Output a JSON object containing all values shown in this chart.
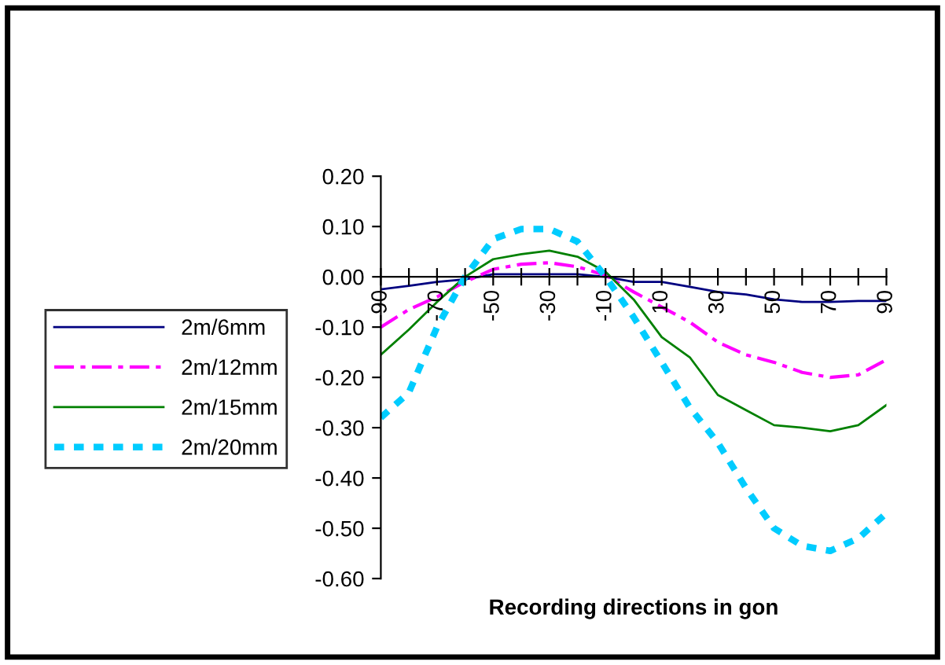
{
  "chart_data": {
    "type": "line",
    "xlabel": "Recording directions in gon",
    "x": [
      -90,
      -80,
      -70,
      -60,
      -50,
      -40,
      -30,
      -20,
      -10,
      0,
      10,
      20,
      30,
      40,
      50,
      60,
      70,
      80,
      90
    ],
    "xlim": [
      -90,
      90
    ],
    "xticks": [
      -90,
      {
        "value": -80,
        "label": null
      },
      -70,
      {
        "value": -60,
        "label": null
      },
      -50,
      {
        "value": -40,
        "label": null
      },
      -30,
      {
        "value": -20,
        "label": null
      },
      -10,
      {
        "value": 0,
        "label": null
      },
      10,
      {
        "value": 20,
        "label": null
      },
      30,
      {
        "value": 40,
        "label": null
      },
      50,
      {
        "value": 60,
        "label": null
      },
      70,
      {
        "value": 80,
        "label": null
      },
      90
    ],
    "ylim": [
      -0.6,
      0.2
    ],
    "yticks": [
      {
        "value": 0.2,
        "label": "0.20"
      },
      {
        "value": 0.1,
        "label": "0.10"
      },
      {
        "value": 0,
        "label": "0.00"
      },
      {
        "value": -0.1,
        "label": "-0.10"
      },
      {
        "value": -0.2,
        "label": "-0.20"
      },
      {
        "value": -0.3,
        "label": "-0.30"
      },
      {
        "value": -0.4,
        "label": "-0.40"
      },
      {
        "value": -0.5,
        "label": "-0.50"
      },
      {
        "value": -0.6,
        "label": "-0.60"
      }
    ],
    "grid": false,
    "legend": "left",
    "marker": "none",
    "series": [
      {
        "name": "2m/6mm",
        "color": "#000080",
        "line_style": "solid",
        "values": [
          -0.025,
          -0.018,
          -0.01,
          -0.005,
          0.005,
          0.005,
          0.005,
          0.005,
          0.0,
          -0.01,
          -0.01,
          -0.02,
          -0.03,
          -0.035,
          -0.045,
          -0.05,
          -0.05,
          -0.048,
          -0.048
        ]
      },
      {
        "name": "2m/12mm",
        "color": "#ff00ff",
        "line_style": "dashdot",
        "values": [
          -0.1,
          -0.065,
          -0.04,
          -0.01,
          0.015,
          0.025,
          0.028,
          0.02,
          0.003,
          -0.03,
          -0.06,
          -0.09,
          -0.13,
          -0.155,
          -0.17,
          -0.19,
          -0.2,
          -0.195,
          -0.165
        ]
      },
      {
        "name": "2m/15mm",
        "color": "#008000",
        "line_style": "solid",
        "values": [
          -0.155,
          -0.105,
          -0.05,
          0.0,
          0.035,
          0.045,
          0.052,
          0.04,
          0.01,
          -0.045,
          -0.12,
          -0.16,
          -0.235,
          -0.265,
          -0.295,
          -0.3,
          -0.307,
          -0.295,
          -0.255
        ]
      },
      {
        "name": "2m/20mm",
        "color": "#00ccff",
        "line_style": "dotted",
        "values": [
          -0.28,
          -0.23,
          -0.1,
          0.0,
          0.075,
          0.095,
          0.095,
          0.07,
          0.0,
          -0.08,
          -0.17,
          -0.26,
          -0.33,
          -0.42,
          -0.5,
          -0.535,
          -0.545,
          -0.52,
          -0.47
        ]
      }
    ]
  }
}
